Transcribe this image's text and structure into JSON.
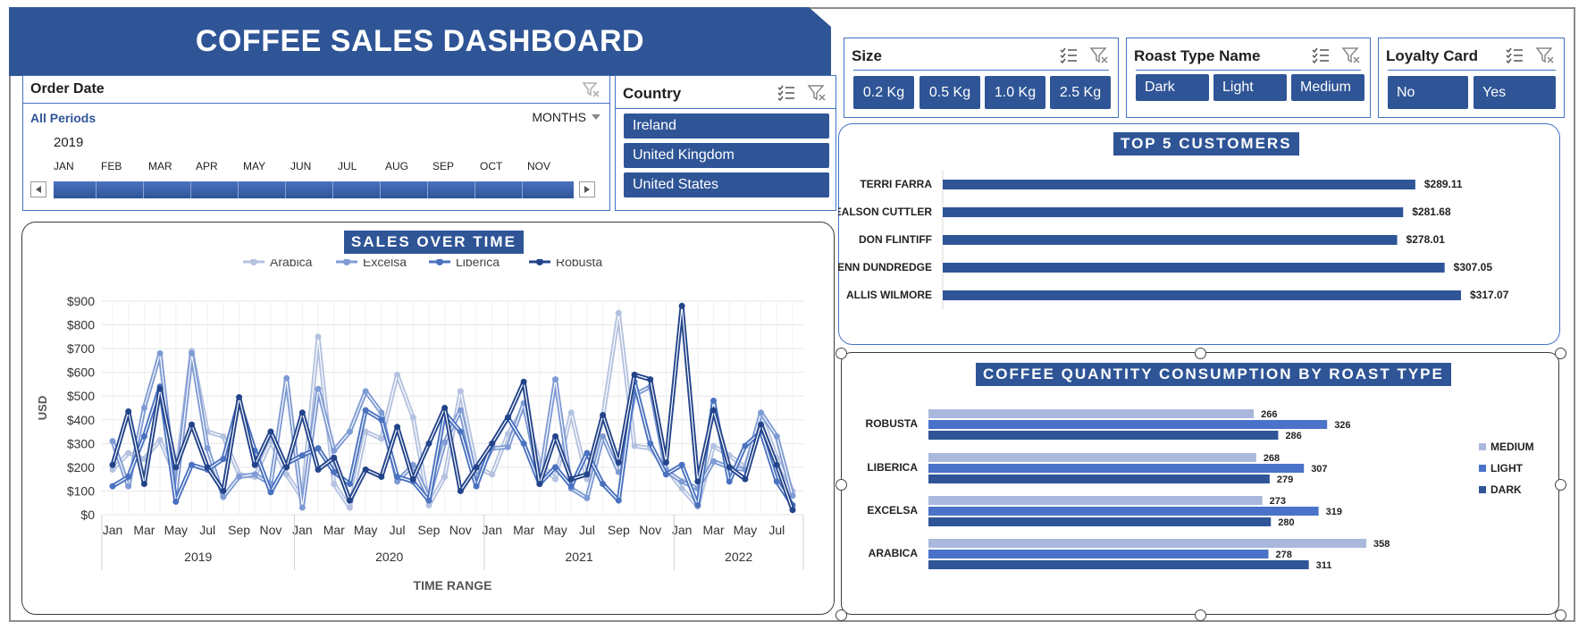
{
  "header": {
    "title": "COFFEE SALES DASHBOARD"
  },
  "order_date": {
    "title": "Order Date",
    "all_periods": "All Periods",
    "period_level": "MONTHS",
    "year": "2019",
    "months": [
      "JAN",
      "FEB",
      "MAR",
      "APR",
      "MAY",
      "JUN",
      "JUL",
      "AUG",
      "SEP",
      "OCT",
      "NOV"
    ]
  },
  "country": {
    "title": "Country",
    "items": [
      "Ireland",
      "United Kingdom",
      "United States"
    ]
  },
  "size": {
    "title": "Size",
    "items": [
      "0.2 Kg",
      "0.5 Kg",
      "1.0 Kg",
      "2.5 Kg"
    ]
  },
  "roast_type": {
    "title": "Roast Type Name",
    "items": [
      "Dark",
      "Light",
      "Medium"
    ]
  },
  "loyalty": {
    "title": "Loyalty Card",
    "items": [
      "No",
      "Yes"
    ]
  },
  "colors": {
    "brand": "#2f5597",
    "arabica": "#b4c2e0",
    "excelsa": "#7f9bd4",
    "liberica": "#4a72c0",
    "robusta": "#23448a"
  },
  "sales_chart": {
    "title": "SALES OVER TIME",
    "ylabel": "USD",
    "xlabel": "TIME RANGE",
    "y_ticks": [
      "$0",
      "$100",
      "$200",
      "$300",
      "$400",
      "$500",
      "$600",
      "$700",
      "$800",
      "$900"
    ],
    "month_ticks": [
      "Jan",
      "Mar",
      "May",
      "Jul",
      "Sep",
      "Nov",
      "Jan",
      "Mar",
      "May",
      "Jul",
      "Sep",
      "Nov",
      "Jan",
      "Mar",
      "May",
      "Jul",
      "Sep",
      "Nov",
      "Jan",
      "Mar",
      "May",
      "Jul"
    ],
    "years": [
      "2019",
      "2020",
      "2021",
      "2022"
    ]
  },
  "customers_chart": {
    "title": "TOP 5 CUSTOMERS"
  },
  "roast_chart": {
    "title": "COFFEE QUANTITY CONSUMPTION BY ROAST TYPE"
  },
  "chart_data": [
    {
      "type": "line",
      "title": "SALES OVER TIME",
      "xlabel": "TIME RANGE",
      "ylabel": "USD",
      "ylim": [
        0,
        900
      ],
      "x": [
        "2019-01",
        "2019-02",
        "2019-03",
        "2019-04",
        "2019-05",
        "2019-06",
        "2019-07",
        "2019-08",
        "2019-09",
        "2019-10",
        "2019-11",
        "2019-12",
        "2020-01",
        "2020-02",
        "2020-03",
        "2020-04",
        "2020-05",
        "2020-06",
        "2020-07",
        "2020-08",
        "2020-09",
        "2020-10",
        "2020-11",
        "2020-12",
        "2021-01",
        "2021-02",
        "2021-03",
        "2021-04",
        "2021-05",
        "2021-06",
        "2021-07",
        "2021-08",
        "2021-09",
        "2021-10",
        "2021-11",
        "2021-12",
        "2022-01",
        "2022-02",
        "2022-03",
        "2022-04",
        "2022-05",
        "2022-06",
        "2022-07",
        "2022-08"
      ],
      "legend": "top",
      "series": [
        {
          "name": "Arabica",
          "values": [
            190,
            260,
            235,
            315,
            160,
            690,
            350,
            330,
            170,
            160,
            310,
            170,
            70,
            750,
            130,
            30,
            350,
            320,
            590,
            410,
            40,
            160,
            520,
            200,
            170,
            340,
            450,
            220,
            150,
            430,
            150,
            410,
            850,
            290,
            280,
            195,
            110,
            35,
            290,
            250,
            200,
            420,
            240,
            100
          ]
        },
        {
          "name": "Excelsa",
          "values": [
            310,
            120,
            450,
            680,
            90,
            680,
            280,
            75,
            160,
            170,
            130,
            575,
            30,
            530,
            270,
            350,
            520,
            430,
            140,
            210,
            70,
            305,
            440,
            150,
            280,
            285,
            470,
            140,
            570,
            110,
            70,
            330,
            180,
            505,
            540,
            185,
            140,
            110,
            225,
            200,
            190,
            430,
            330,
            80
          ]
        },
        {
          "name": "Liberica",
          "values": [
            120,
            160,
            330,
            540,
            55,
            210,
            190,
            235,
            480,
            270,
            95,
            215,
            250,
            280,
            180,
            130,
            440,
            400,
            160,
            140,
            60,
            430,
            350,
            120,
            300,
            410,
            300,
            130,
            200,
            120,
            260,
            130,
            60,
            560,
            300,
            170,
            210,
            40,
            480,
            140,
            290,
            350,
            140,
            40
          ]
        },
        {
          "name": "Robusta",
          "values": [
            210,
            435,
            130,
            530,
            200,
            380,
            200,
            100,
            495,
            210,
            350,
            200,
            430,
            190,
            240,
            60,
            190,
            160,
            370,
            150,
            300,
            450,
            100,
            200,
            300,
            410,
            560,
            130,
            330,
            150,
            170,
            420,
            220,
            590,
            570,
            220,
            880,
            140,
            440,
            200,
            150,
            380,
            210,
            20
          ]
        }
      ]
    },
    {
      "type": "bar",
      "title": "TOP 5 CUSTOMERS",
      "categories": [
        "TERRI FARRA",
        "NEALSON CUTTLER",
        "DON FLINTIFF",
        "BRENN DUNDREDGE",
        "ALLIS WILMORE"
      ],
      "values": [
        289.11,
        281.68,
        278.01,
        307.05,
        317.07
      ],
      "labels": [
        "$289.11",
        "$281.68",
        "$278.01",
        "$307.05",
        "$317.07"
      ],
      "orientation": "horizontal"
    },
    {
      "type": "bar",
      "title": "COFFEE QUANTITY CONSUMPTION BY ROAST TYPE",
      "categories": [
        "ROBUSTA",
        "LIBERICA",
        "EXCELSA",
        "ARABICA"
      ],
      "orientation": "horizontal",
      "legend": "right",
      "series": [
        {
          "name": "MEDIUM",
          "color": "#a9b8dc",
          "values": [
            266,
            268,
            273,
            358
          ]
        },
        {
          "name": "LIGHT",
          "color": "#4a72c8",
          "values": [
            326,
            307,
            319,
            278
          ]
        },
        {
          "name": "DARK",
          "color": "#2f5597",
          "values": [
            286,
            279,
            280,
            311
          ]
        }
      ]
    }
  ]
}
